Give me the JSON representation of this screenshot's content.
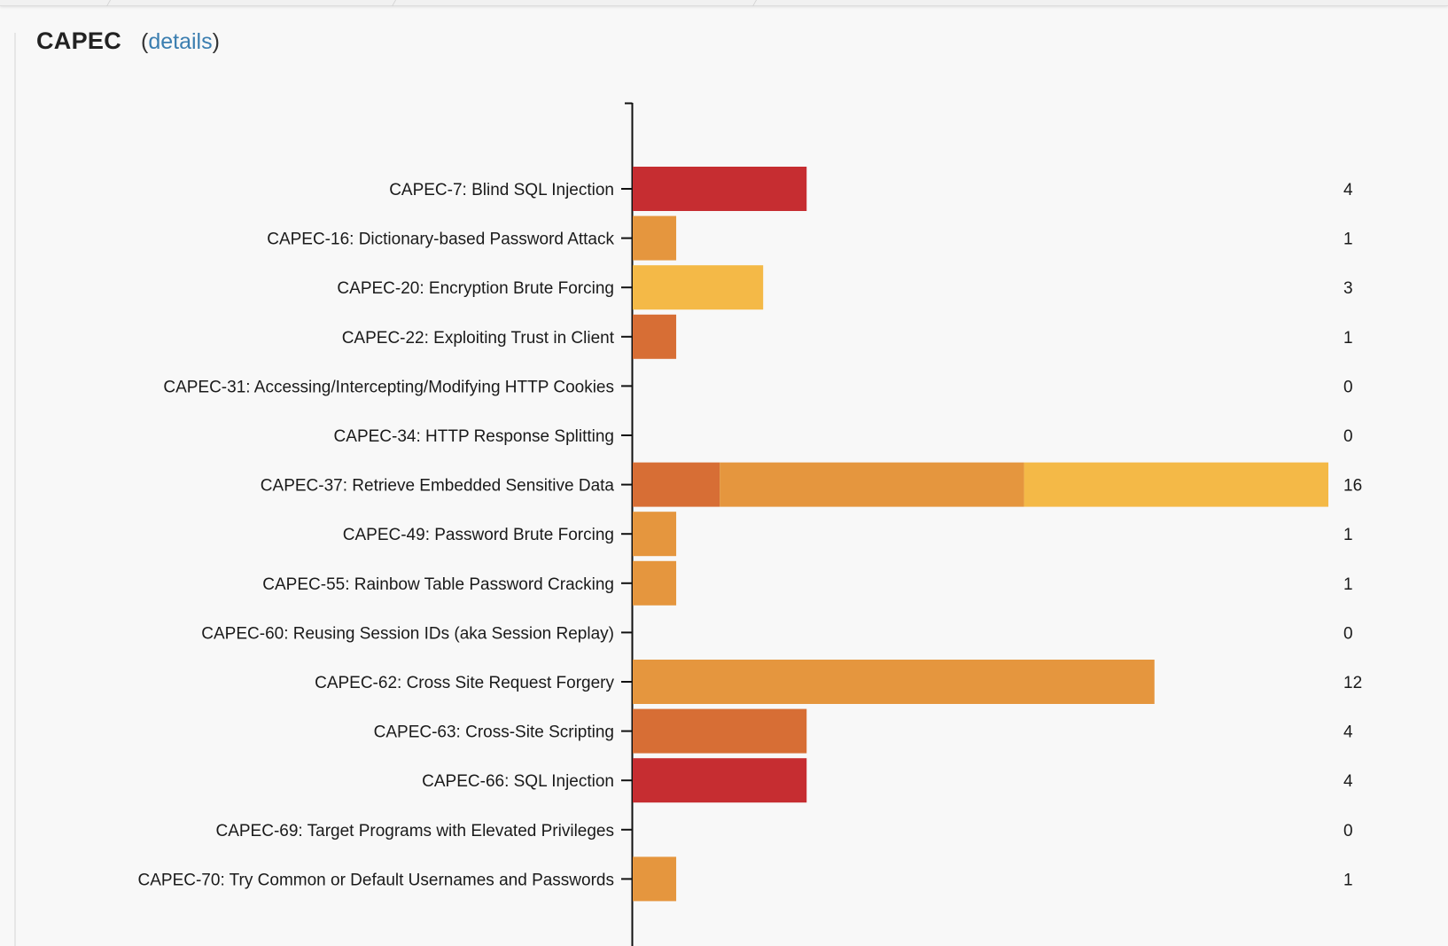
{
  "panel": {
    "title": "CAPEC",
    "details_open": "(",
    "details_link": "details",
    "details_close": ")"
  },
  "chart_data": {
    "type": "bar",
    "orientation": "horizontal",
    "stacked": true,
    "xlim": [
      0,
      16
    ],
    "grid": false,
    "legend": "none",
    "categories": [
      "CAPEC-7: Blind SQL Injection",
      "CAPEC-16: Dictionary-based Password Attack",
      "CAPEC-20: Encryption Brute Forcing",
      "CAPEC-22: Exploiting Trust in Client",
      "CAPEC-31: Accessing/Intercepting/Modifying HTTP Cookies",
      "CAPEC-34: HTTP Response Splitting",
      "CAPEC-37: Retrieve Embedded Sensitive Data",
      "CAPEC-49: Password Brute Forcing",
      "CAPEC-55: Rainbow Table Password Cracking",
      "CAPEC-60: Reusing Session IDs (aka Session Replay)",
      "CAPEC-62: Cross Site Request Forgery",
      "CAPEC-63: Cross-Site Scripting",
      "CAPEC-66: SQL Injection",
      "CAPEC-69: Target Programs with Elevated Privileges",
      "CAPEC-70: Try Common or Default Usernames and Passwords"
    ],
    "totals": [
      4,
      1,
      3,
      1,
      0,
      0,
      16,
      1,
      1,
      0,
      12,
      4,
      4,
      0,
      1
    ],
    "series": [
      {
        "color": "#c62d31",
        "values": [
          4,
          0,
          0,
          0,
          0,
          0,
          0,
          0,
          0,
          0,
          0,
          0,
          4,
          0,
          0
        ]
      },
      {
        "color": "#d76e35",
        "values": [
          0,
          0,
          0,
          1,
          0,
          0,
          2,
          0,
          0,
          0,
          0,
          4,
          0,
          0,
          0
        ]
      },
      {
        "color": "#e5963e",
        "values": [
          0,
          1,
          0,
          0,
          0,
          0,
          7,
          1,
          1,
          0,
          12,
          0,
          0,
          0,
          1
        ]
      },
      {
        "color": "#f4b947",
        "values": [
          0,
          0,
          3,
          0,
          0,
          0,
          7,
          0,
          0,
          0,
          0,
          0,
          0,
          0,
          0
        ]
      }
    ]
  }
}
